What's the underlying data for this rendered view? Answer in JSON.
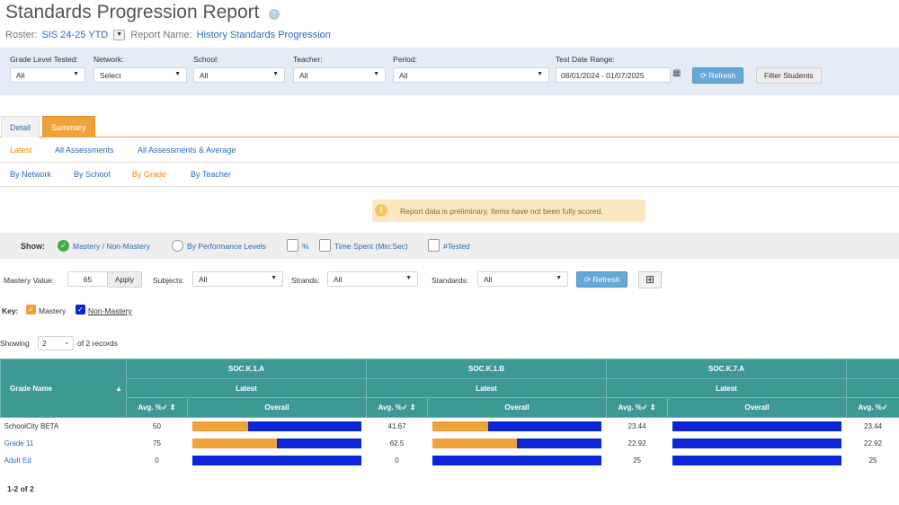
{
  "header": {
    "title": "Standards Progression Report",
    "roster_label": "Roster:",
    "roster_value": "SIS 24-25 YTD",
    "report_name_label": "Report Name:",
    "report_name_value": "History Standards Progression"
  },
  "filters": {
    "grade_level": {
      "label": "Grade Level Tested:",
      "value": "All"
    },
    "network": {
      "label": "Network:",
      "value": "Select"
    },
    "school": {
      "label": "School:",
      "value": "All"
    },
    "teacher": {
      "label": "Teacher:",
      "value": "All"
    },
    "period": {
      "label": "Period:",
      "value": "All"
    },
    "test_date": {
      "label": "Test Date Range:",
      "value": "08/01/2024 - 01/07/2025"
    },
    "refresh_label": "Refresh",
    "filter_students_label": "Filter Students"
  },
  "tabs": {
    "detail": "Detail",
    "summary": "Summary"
  },
  "subtabs": {
    "latest": "Latest",
    "all_assessments": "All Assessments",
    "all_assessments_average": "All Assessments & Average",
    "by_network": "By Network",
    "by_school": "By School",
    "by_grade": "By Grade",
    "by_teacher": "By Teacher"
  },
  "alert": {
    "text": "Report data is preliminary. Items have not been fully scored."
  },
  "show": {
    "label": "Show:",
    "mastery": "Mastery / Non-Mastery",
    "performance": "By Performance Levels",
    "percent": "%",
    "time_spent": "Time Spent (Min:Sec)",
    "tested": "#Tested"
  },
  "params": {
    "mastery_label": "Mastery Value:",
    "mastery_value": "65",
    "apply_label": "Apply",
    "subjects_label": "Subjects:",
    "subjects_value": "All",
    "strands_label": "Strands:",
    "strands_value": "All",
    "standards_label": "Standards:",
    "standards_value": "All",
    "refresh_label": "Refresh"
  },
  "key": {
    "label": "Key:",
    "mastery": "Mastery",
    "non_mastery": "Non-Mastery"
  },
  "colors": {
    "mastery": "#f0a23a",
    "non_mastery": "#0a24d6",
    "header_teal": "#3d9996"
  },
  "showing": {
    "label": "Showing",
    "value": "2",
    "suffix": "of 2 records"
  },
  "table": {
    "grade_name_header": "Grade Name",
    "standards": [
      "SOC.K.1.A",
      "SOC.K.1.B",
      "SOC.K.7.A"
    ],
    "latest_label": "Latest",
    "avg_header": "Avg. %",
    "overall_header": "Overall",
    "rows": [
      {
        "name": "SchoolCity BETA",
        "values": [
          {
            "avg": "50",
            "mastery_frac": 0.33
          },
          {
            "avg": "41.67",
            "mastery_frac": 0.33
          },
          {
            "avg": "23.44",
            "mastery_frac": 0
          },
          {
            "avg": "23.44"
          }
        ]
      },
      {
        "name": "Grade 11",
        "values": [
          {
            "avg": "75",
            "mastery_frac": 0.5
          },
          {
            "avg": "62.5",
            "mastery_frac": 0.5
          },
          {
            "avg": "22.92",
            "mastery_frac": 0
          },
          {
            "avg": "22.92"
          }
        ]
      },
      {
        "name": "Adult Ed",
        "values": [
          {
            "avg": "0",
            "mastery_frac": 0
          },
          {
            "avg": "0",
            "mastery_frac": 0
          },
          {
            "avg": "25",
            "mastery_frac": 0
          },
          {
            "avg": "25"
          }
        ]
      }
    ]
  },
  "footer": {
    "records": "1-2 of 2"
  }
}
